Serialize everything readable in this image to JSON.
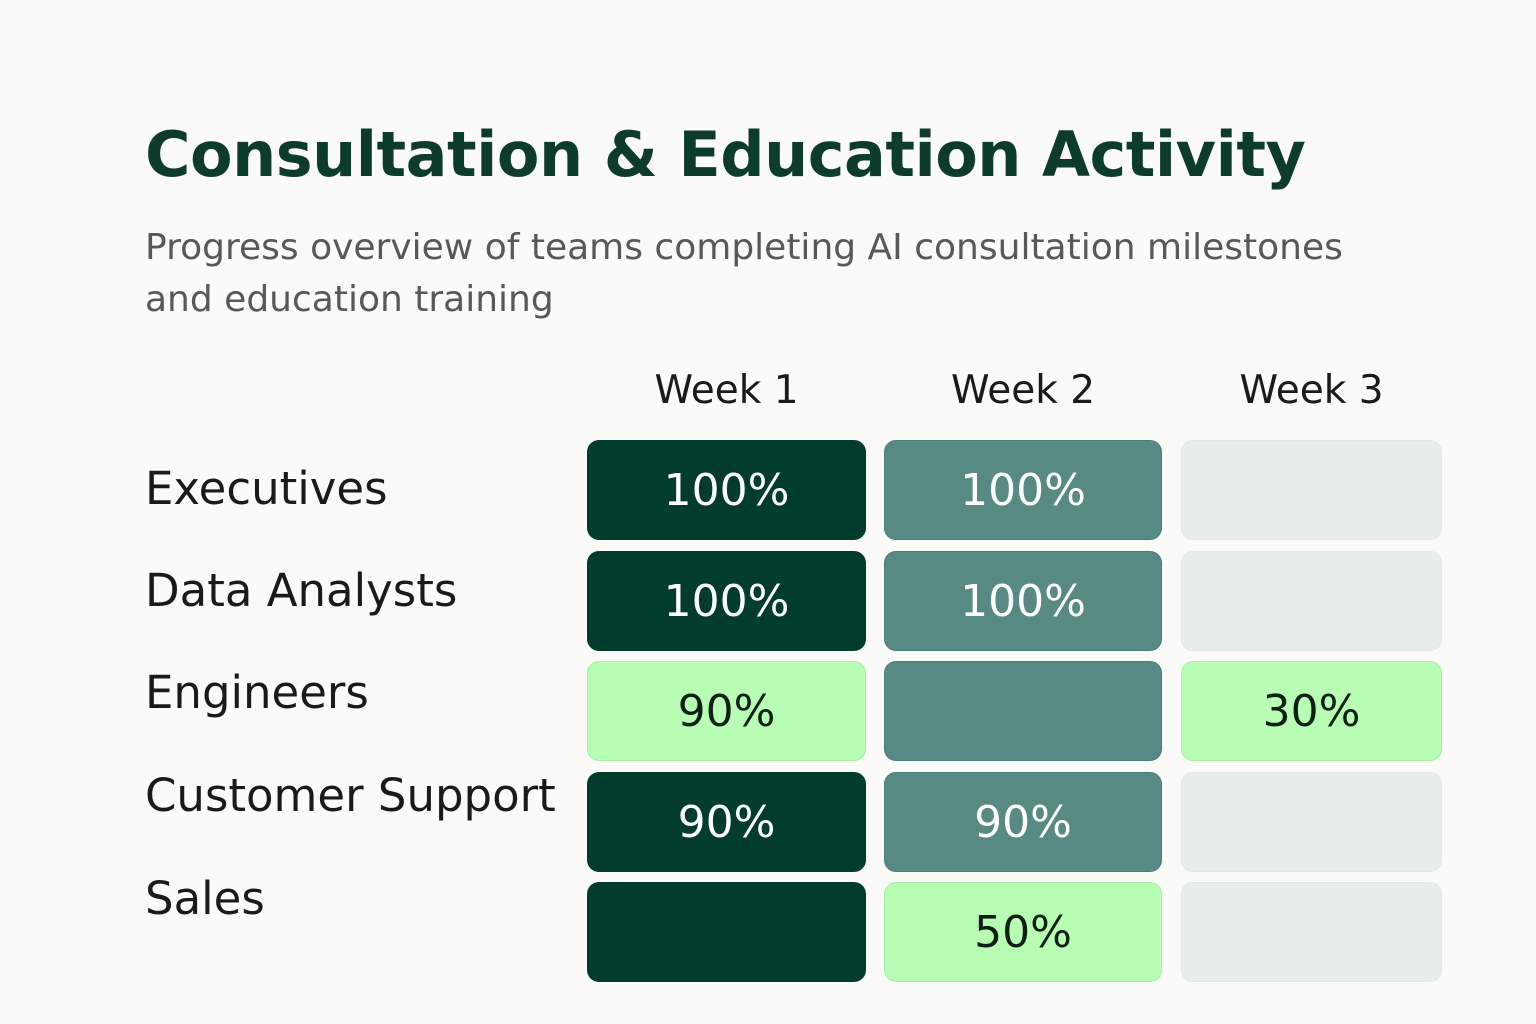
{
  "chart_data": {
    "type": "heatmap",
    "title": "Consultation & Education Activity",
    "subtitle": "Progress overview of teams completing AI consultation milestones and education training",
    "columns": [
      "Week 1",
      "Week 2",
      "Week 3"
    ],
    "rows": [
      "Executives",
      "Data Analysts",
      "Engineers",
      "Customer Support",
      "Sales"
    ],
    "cells": [
      [
        {
          "label": "100%",
          "level": "dark"
        },
        {
          "label": "100%",
          "level": "mid"
        },
        {
          "label": "",
          "level": "empty"
        }
      ],
      [
        {
          "label": "100%",
          "level": "dark"
        },
        {
          "label": "100%",
          "level": "mid"
        },
        {
          "label": "",
          "level": "empty"
        }
      ],
      [
        {
          "label": "90%",
          "level": "light"
        },
        {
          "label": "",
          "level": "mid"
        },
        {
          "label": "30%",
          "level": "light"
        }
      ],
      [
        {
          "label": "90%",
          "level": "dark"
        },
        {
          "label": "90%",
          "level": "mid"
        },
        {
          "label": "",
          "level": "empty"
        }
      ],
      [
        {
          "label": "",
          "level": "dark"
        },
        {
          "label": "50%",
          "level": "light"
        },
        {
          "label": "",
          "level": "empty"
        }
      ]
    ],
    "colors": {
      "dark": "#023c2c",
      "mid": "#588a84",
      "light": "#b7fdb3",
      "empty": "#e8efe9"
    }
  }
}
